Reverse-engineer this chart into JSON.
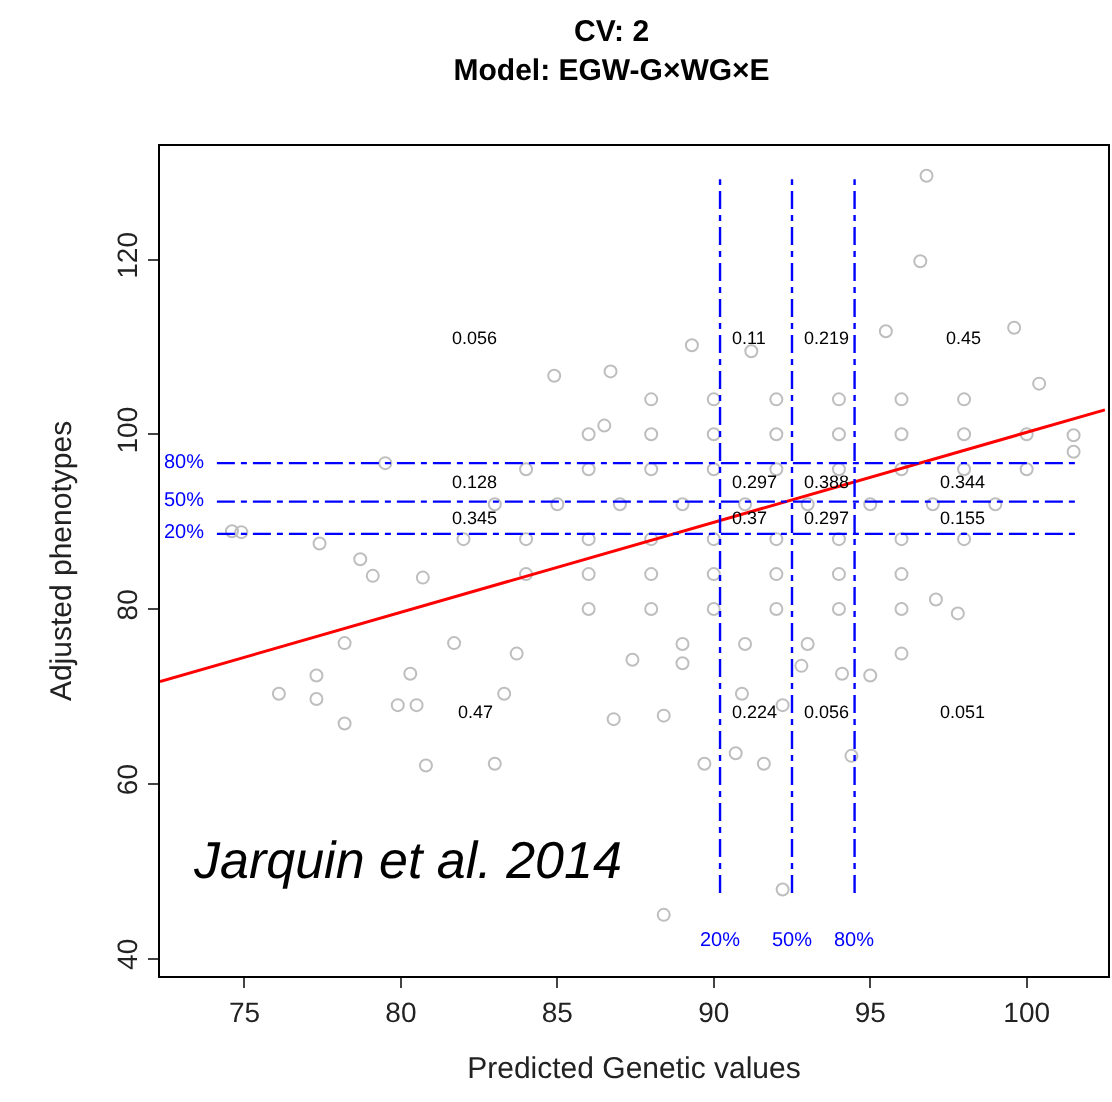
{
  "chart_data": {
    "type": "scatter",
    "title": "CV: 2\nModel: EGW-G×WG×E",
    "xlabel": "Predicted Genetic values",
    "ylabel": "Adjusted phenotypes",
    "xlim": [
      72.3,
      102.6
    ],
    "ylim": [
      38,
      133
    ],
    "xticks": [
      75,
      80,
      85,
      90,
      95,
      100
    ],
    "yticks": [
      40,
      60,
      80,
      100,
      120
    ],
    "grid": false,
    "legend": false,
    "marker": "circle",
    "series": [
      {
        "color": "#bebebe",
        "x": [
          96.8,
          96.6,
          84.9,
          86.7,
          79.5,
          74.6,
          101.5,
          101.5,
          100.4,
          99.6,
          95.5,
          89.3,
          91.2,
          77.4,
          78.7,
          79.1,
          80.7,
          76.1,
          78.2,
          77.3,
          77.3,
          80.8,
          83.0,
          79.9,
          80.5,
          83.3,
          86.8,
          88.4,
          89.7,
          90.9,
          90.7,
          91.6,
          92.2,
          88.4,
          94.4,
          92.2,
          95.0,
          97.8,
          97.1,
          96.0,
          81.7,
          78.2,
          80.3,
          83.7,
          87.4,
          89.0,
          92.8,
          94.1,
          74.9,
          86.5,
          88,
          90,
          92,
          94,
          96,
          98,
          86,
          88,
          90,
          92,
          94,
          96,
          98,
          100,
          84,
          86,
          88,
          90,
          92,
          94,
          96,
          98,
          100,
          83,
          85,
          87,
          89,
          91,
          93,
          95,
          97,
          99,
          82,
          84,
          86,
          88,
          90,
          92,
          94,
          96,
          98,
          84,
          86,
          88,
          90,
          92,
          94,
          96,
          86,
          88,
          90,
          92,
          94,
          96,
          89,
          91,
          93
        ],
        "values": [
          129.6,
          119.8,
          106.7,
          107.2,
          96.7,
          88.9,
          98.0,
          99.9,
          105.8,
          112.2,
          111.8,
          110.2,
          109.5,
          87.5,
          85.7,
          83.8,
          83.6,
          70.3,
          66.9,
          72.4,
          69.7,
          62.1,
          62.3,
          69.0,
          69.0,
          70.3,
          67.4,
          67.8,
          62.3,
          70.3,
          63.5,
          62.3,
          47.9,
          45.0,
          63.2,
          69.0,
          72.4,
          79.5,
          81.1,
          74.9,
          76.1,
          76.1,
          72.6,
          74.9,
          74.2,
          73.8,
          73.5,
          72.6,
          88.8,
          101,
          104,
          104,
          104,
          104,
          104,
          104,
          100,
          100,
          100,
          100,
          100,
          100,
          100,
          100,
          96,
          96,
          96,
          96,
          96,
          96,
          96,
          96,
          96,
          92,
          92,
          92,
          92,
          92,
          92,
          92,
          92,
          92,
          88,
          88,
          88,
          88,
          88,
          88,
          88,
          88,
          88,
          84,
          84,
          84,
          84,
          84,
          84,
          84,
          80,
          80,
          80,
          80,
          80,
          80,
          76,
          76,
          76
        ]
      },
      {
        "type": "line",
        "color": "#ff0000",
        "marker": "none",
        "x": [
          72.3,
          102.5
        ],
        "values": [
          71.7,
          102.8
        ]
      }
    ],
    "ref_lines": [
      {
        "axis": "x",
        "value": 90.2,
        "color": "#0000ff",
        "line_style": "dashed"
      },
      {
        "axis": "x",
        "value": 92.5,
        "color": "#0000ff",
        "line_style": "dashed"
      },
      {
        "axis": "x",
        "value": 94.5,
        "color": "#0000ff",
        "line_style": "dashed"
      },
      {
        "axis": "y",
        "value": 96.7,
        "color": "#0000ff",
        "line_style": "dashed"
      },
      {
        "axis": "y",
        "value": 92.3,
        "color": "#0000ff",
        "line_style": "dashed"
      },
      {
        "axis": "y",
        "value": 88.6,
        "color": "#0000ff",
        "line_style": "dashed"
      }
    ],
    "annotations": [
      "0.056",
      "0.11",
      "0.219",
      "0.45",
      "0.128",
      "0.297",
      "0.388",
      "0.344",
      "0.345",
      "0.37",
      "0.297",
      "0.155",
      "0.47",
      "0.224",
      "0.056",
      "0.051",
      "Jarquin et al. 2014",
      "20%",
      "50%",
      "80%",
      "80%",
      "50%",
      "20%"
    ]
  }
}
